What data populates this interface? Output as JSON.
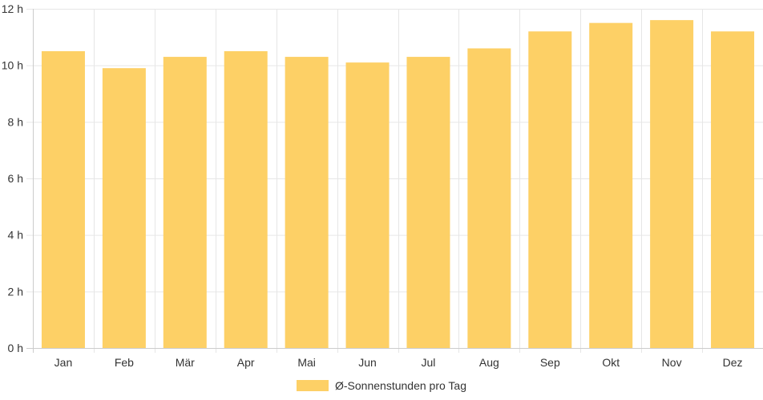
{
  "chart_data": {
    "type": "bar",
    "categories": [
      "Jan",
      "Feb",
      "Mär",
      "Apr",
      "Mai",
      "Jun",
      "Jul",
      "Aug",
      "Sep",
      "Okt",
      "Nov",
      "Dez"
    ],
    "series": [
      {
        "name": "Ø-Sonnenstunden pro Tag",
        "values": [
          10.5,
          9.9,
          10.3,
          10.5,
          10.3,
          10.1,
          10.3,
          10.6,
          11.2,
          11.5,
          11.6,
          11.2
        ]
      }
    ],
    "y_unit_suffix": " h",
    "y_ticks": [
      "0 h",
      "2 h",
      "4 h",
      "6 h",
      "8 h",
      "10 h",
      "12 h"
    ],
    "ylim": [
      0,
      12
    ],
    "grid": true,
    "legend_position": "bottom",
    "bar_color": "#fdd066",
    "grid_color": "#e6e6e6"
  }
}
